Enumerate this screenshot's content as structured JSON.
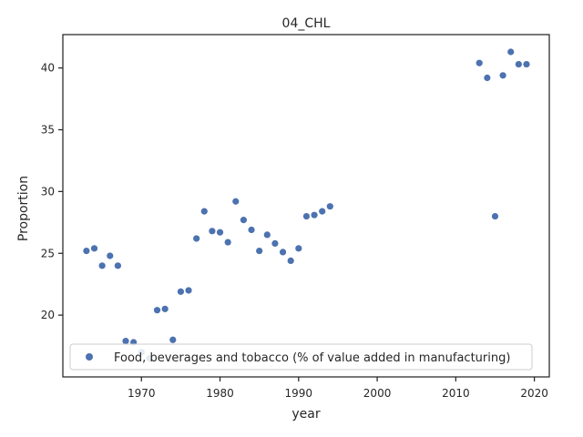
{
  "chart_data": {
    "type": "scatter",
    "title": "04_CHL",
    "xlabel": "year",
    "ylabel": "Proportion",
    "xlim": [
      1960.0,
      2021.9
    ],
    "ylim": [
      15.0,
      42.7
    ],
    "xticks": [
      1970,
      1980,
      1990,
      2000,
      2010,
      2020
    ],
    "yticks": [
      20,
      25,
      30,
      35,
      40
    ],
    "grid": false,
    "legend_position": "lower-left",
    "marker_color": "#4c72b0",
    "series": [
      {
        "name": "Food, beverages and tobacco (% of value added in manufacturing)",
        "x": [
          1963,
          1964,
          1965,
          1966,
          1967,
          1968,
          1969,
          1970,
          1971,
          1972,
          1973,
          1974,
          1975,
          1976,
          1977,
          1978,
          1979,
          1980,
          1981,
          1982,
          1983,
          1984,
          1985,
          1986,
          1987,
          1988,
          1989,
          1990,
          1991,
          1992,
          1993,
          1994,
          2013,
          2014,
          2015,
          2016,
          2017,
          2018,
          2019
        ],
        "y": [
          25.2,
          25.4,
          24.0,
          24.8,
          24.0,
          17.9,
          17.8,
          17.0,
          16.5,
          20.4,
          20.5,
          18.0,
          21.9,
          22.0,
          26.2,
          28.4,
          26.8,
          26.7,
          25.9,
          29.2,
          27.7,
          26.9,
          25.2,
          26.5,
          25.8,
          25.1,
          24.4,
          25.4,
          28.0,
          28.1,
          28.4,
          28.8,
          40.4,
          39.2,
          28.0,
          39.4,
          41.3,
          40.3,
          40.3
        ]
      }
    ]
  }
}
